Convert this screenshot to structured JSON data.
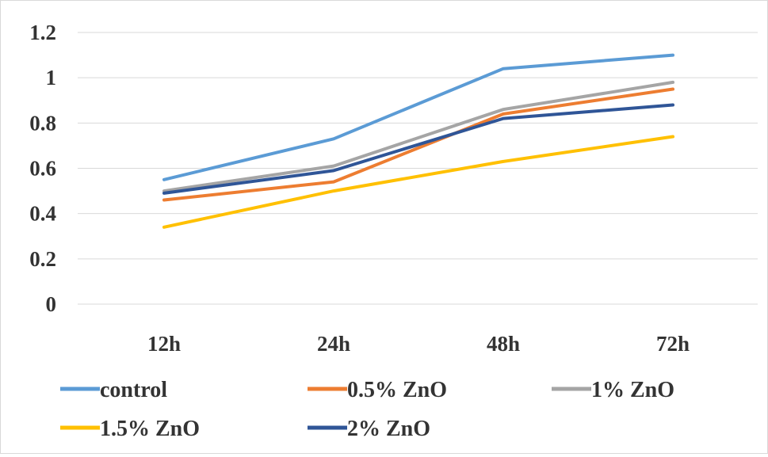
{
  "chart_data": {
    "type": "line",
    "categories": [
      "12h",
      "24h",
      "48h",
      "72h"
    ],
    "ylim": [
      0,
      1.2
    ],
    "yticks": [
      {
        "value": 0,
        "label": "0"
      },
      {
        "value": 0.2,
        "label": "0.2"
      },
      {
        "value": 0.4,
        "label": "0.4"
      },
      {
        "value": 0.6,
        "label": "0.6"
      },
      {
        "value": 0.8,
        "label": "0.8"
      },
      {
        "value": 1,
        "label": "1"
      },
      {
        "value": 1.2,
        "label": "1.2"
      }
    ],
    "grid": true,
    "legend_position": "bottom",
    "series": [
      {
        "name": "control",
        "color": "#5b9bd5",
        "values": [
          0.55,
          0.73,
          1.04,
          1.1
        ]
      },
      {
        "name": "0.5% ZnO",
        "color": "#ed7d31",
        "values": [
          0.46,
          0.54,
          0.84,
          0.95
        ]
      },
      {
        "name": "1% ZnO",
        "color": "#a5a5a5",
        "values": [
          0.5,
          0.61,
          0.86,
          0.98
        ]
      },
      {
        "name": "1.5% ZnO",
        "color": "#ffc000",
        "values": [
          0.34,
          0.5,
          0.63,
          0.74
        ]
      },
      {
        "name": "2% ZnO",
        "color": "#2f5597",
        "values": [
          0.49,
          0.59,
          0.82,
          0.88
        ]
      }
    ]
  }
}
